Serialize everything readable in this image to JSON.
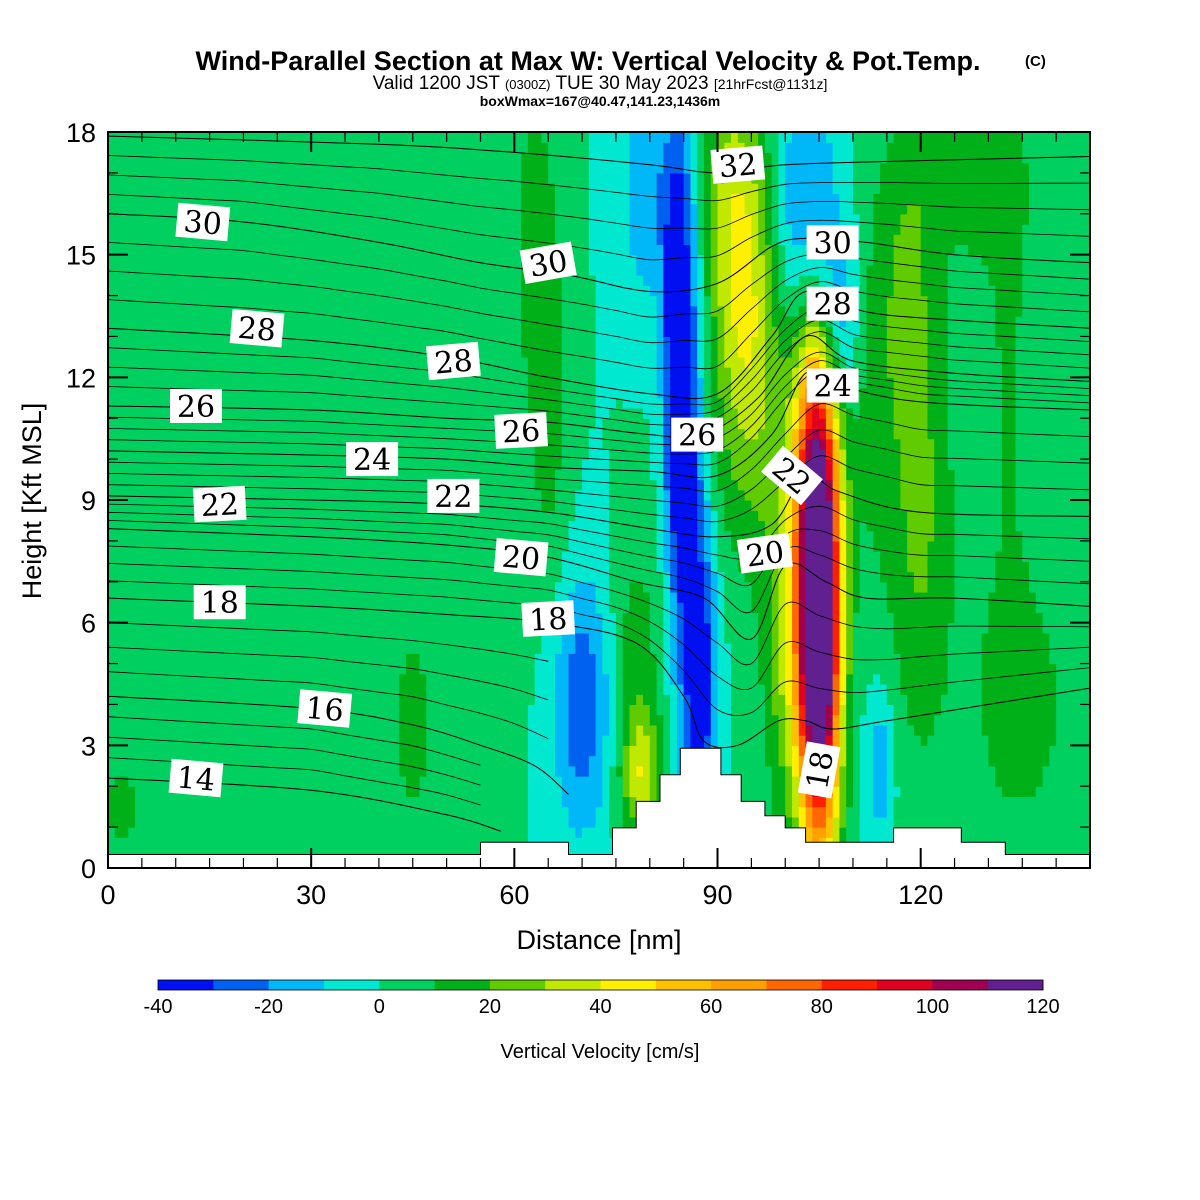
{
  "header": {
    "title_main": "Wind-Parallel Section at Max W: Vertical Velocity & Pot.Temp.",
    "title_mark": "(C)",
    "valid_a": "Valid 1200 JST",
    "valid_b": "(0300Z)",
    "valid_c": "TUE 30 May 2023",
    "valid_d": "[21hrFcst@1131z]",
    "box_info": "boxWmax=167@40.47,141.23,1436m"
  },
  "colorbar": {
    "label": "Vertical Velocity [cm/s]",
    "tick_labels": [
      "-40",
      "-20",
      "0",
      "20",
      "40",
      "60",
      "80",
      "100",
      "120"
    ],
    "levels": [
      -40,
      -30,
      -20,
      -10,
      0,
      10,
      20,
      30,
      40,
      50,
      60,
      70,
      80,
      90,
      100,
      110,
      120
    ],
    "colors": [
      "#0010f0",
      "#0060f0",
      "#00b8f8",
      "#00e8d0",
      "#00d060",
      "#00b018",
      "#60cc00",
      "#c0e800",
      "#fff000",
      "#ffc000",
      "#ffa000",
      "#ff6800",
      "#ff2000",
      "#e00020",
      "#a00050",
      "#602090"
    ]
  },
  "chart_data": {
    "type": "heatmap",
    "title": "Wind-Parallel Section at Max W: Vertical Velocity & Pot.Temp.",
    "xlabel": "Distance [nm]",
    "ylabel": "Height [Kft MSL]",
    "xlim": [
      0,
      145
    ],
    "ylim": [
      0,
      18
    ],
    "x_ticks": [
      0,
      30,
      60,
      90,
      120
    ],
    "y_ticks": [
      0,
      3,
      6,
      9,
      12,
      15,
      18
    ],
    "x_tick_labels": [
      "0",
      "30",
      "60",
      "90",
      "120"
    ],
    "y_tick_labels": [
      "0",
      "3",
      "6",
      "9",
      "12",
      "15",
      "18"
    ],
    "w_units": "cm/s",
    "w_features": [
      {
        "x": 84,
        "y": 12.5,
        "sx": 1.4,
        "sy": 3.6,
        "amp": -45
      },
      {
        "x": 86,
        "y": 8.5,
        "sx": 1.7,
        "sy": 5.5,
        "amp": -28
      },
      {
        "x": 88,
        "y": 4.5,
        "sx": 1.6,
        "sy": 2.5,
        "amp": -28
      },
      {
        "x": 70,
        "y": 4.0,
        "sx": 3.0,
        "sy": 2.2,
        "amp": -28
      },
      {
        "x": 103,
        "y": 15.5,
        "sx": 3.5,
        "sy": 2.6,
        "amp": -35
      },
      {
        "x": 108,
        "y": 13.5,
        "sx": 2.2,
        "sy": 1.5,
        "amp": -20
      },
      {
        "x": 114,
        "y": 2.5,
        "sx": 1.5,
        "sy": 1.3,
        "amp": -18
      },
      {
        "x": 80,
        "y": 16.5,
        "sx": 3.0,
        "sy": 2.0,
        "amp": -18
      },
      {
        "x": 105,
        "y": 5.8,
        "sx": 2.2,
        "sy": 3.8,
        "amp": 150
      },
      {
        "x": 104,
        "y": 10.5,
        "sx": 2.5,
        "sy": 3.5,
        "amp": 45
      },
      {
        "x": 95,
        "y": 13.0,
        "sx": 4.0,
        "sy": 3.5,
        "amp": 38
      },
      {
        "x": 92,
        "y": 16.5,
        "sx": 3.0,
        "sy": 2.5,
        "amp": 22
      },
      {
        "x": 100,
        "y": 5.0,
        "sx": 2.5,
        "sy": 3.0,
        "amp": 22
      },
      {
        "x": 63,
        "y": 15.5,
        "sx": 2.8,
        "sy": 3.0,
        "amp": 14
      },
      {
        "x": 65,
        "y": 10.5,
        "sx": 2.2,
        "sy": 3.0,
        "amp": 12
      },
      {
        "x": 78,
        "y": 4.5,
        "sx": 2.5,
        "sy": 2.5,
        "amp": 18
      },
      {
        "x": 79,
        "y": 2.2,
        "sx": 2.0,
        "sy": 1.0,
        "amp": 30
      },
      {
        "x": 45,
        "y": 3.5,
        "sx": 3.5,
        "sy": 2.8,
        "amp": 12
      },
      {
        "x": 2,
        "y": 1.5,
        "sx": 3.0,
        "sy": 1.5,
        "amp": 12
      },
      {
        "x": 120,
        "y": 9.0,
        "sx": 3.5,
        "sy": 4.5,
        "amp": 22
      },
      {
        "x": 113,
        "y": 12.0,
        "sx": 3.0,
        "sy": 3.5,
        "amp": 13
      },
      {
        "x": 135,
        "y": 4.0,
        "sx": 6.0,
        "sy": 2.5,
        "amp": 14
      },
      {
        "x": 133,
        "y": 12.5,
        "sx": 3.0,
        "sy": 5.0,
        "amp": 11
      },
      {
        "x": 128,
        "y": 17.0,
        "sx": 5.0,
        "sy": 1.5,
        "amp": 16
      },
      {
        "x": 118,
        "y": 15.5,
        "sx": 3.0,
        "sy": 2.5,
        "amp": 12
      },
      {
        "x": 58,
        "y": 5.0,
        "sx": 2.0,
        "sy": 2.5,
        "amp": 8
      }
    ],
    "theta_contours": [
      {
        "level": 14,
        "points": [
          [
            0,
            2.2
          ],
          [
            30,
            1.9
          ],
          [
            50,
            1.3
          ],
          [
            58,
            0.9
          ]
        ]
      },
      {
        "level": 16,
        "points": [
          [
            0,
            4.2
          ],
          [
            30,
            3.9
          ],
          [
            45,
            3.5
          ],
          [
            55,
            3.0
          ],
          [
            63,
            2.5
          ],
          [
            68,
            1.8
          ]
        ]
      },
      {
        "level": 18,
        "points": [
          [
            0,
            6.6
          ],
          [
            30,
            6.4
          ],
          [
            50,
            6.2
          ],
          [
            65,
            6.0
          ],
          [
            78,
            5.5
          ],
          [
            85,
            4.2
          ],
          [
            88,
            3.1
          ],
          [
            93,
            3.0
          ],
          [
            99,
            3.6
          ],
          [
            103,
            3.6
          ],
          [
            107,
            3.4
          ],
          [
            115,
            3.6
          ],
          [
            130,
            4.0
          ],
          [
            145,
            4.4
          ]
        ]
      },
      {
        "level": 20,
        "points": [
          [
            0,
            8.3
          ],
          [
            30,
            8.1
          ],
          [
            50,
            7.9
          ],
          [
            65,
            7.6
          ],
          [
            78,
            7.0
          ],
          [
            88,
            6.6
          ],
          [
            95,
            5.6
          ],
          [
            100,
            7.4
          ],
          [
            106,
            7.0
          ],
          [
            112,
            6.6
          ],
          [
            125,
            6.6
          ],
          [
            145,
            6.4
          ]
        ]
      },
      {
        "level": 22,
        "points": [
          [
            0,
            9.1
          ],
          [
            30,
            9.0
          ],
          [
            50,
            8.9
          ],
          [
            65,
            8.7
          ],
          [
            80,
            8.3
          ],
          [
            90,
            8.1
          ],
          [
            98,
            8.4
          ],
          [
            103,
            9.6
          ],
          [
            108,
            9.2
          ],
          [
            120,
            8.7
          ],
          [
            145,
            8.6
          ]
        ]
      },
      {
        "level": 24,
        "points": [
          [
            0,
            10.2
          ],
          [
            30,
            10.1
          ],
          [
            50,
            10.0
          ],
          [
            65,
            9.8
          ],
          [
            80,
            9.7
          ],
          [
            90,
            9.6
          ],
          [
            98,
            10.6
          ],
          [
            103,
            12.1
          ],
          [
            108,
            11.8
          ],
          [
            120,
            11.4
          ],
          [
            145,
            11.2
          ]
        ]
      },
      {
        "level": 26,
        "points": [
          [
            0,
            11.3
          ],
          [
            30,
            11.2
          ],
          [
            50,
            11.0
          ],
          [
            65,
            10.9
          ],
          [
            80,
            10.6
          ],
          [
            88,
            10.6
          ],
          [
            96,
            11.5
          ],
          [
            103,
            13.0
          ],
          [
            110,
            12.4
          ],
          [
            125,
            12.1
          ],
          [
            145,
            11.9
          ]
        ]
      },
      {
        "level": 28,
        "points": [
          [
            0,
            13.2
          ],
          [
            30,
            12.9
          ],
          [
            50,
            12.5
          ],
          [
            65,
            12.0
          ],
          [
            80,
            11.6
          ],
          [
            90,
            11.6
          ],
          [
            98,
            13.0
          ],
          [
            103,
            14.1
          ],
          [
            112,
            13.6
          ],
          [
            125,
            13.4
          ],
          [
            145,
            13.2
          ]
        ]
      },
      {
        "level": 30,
        "points": [
          [
            0,
            16.0
          ],
          [
            20,
            15.8
          ],
          [
            40,
            15.3
          ],
          [
            55,
            14.8
          ],
          [
            68,
            14.5
          ],
          [
            80,
            14.1
          ],
          [
            90,
            14.3
          ],
          [
            98,
            15.2
          ],
          [
            103,
            15.4
          ],
          [
            112,
            15.3
          ],
          [
            125,
            15.0
          ],
          [
            145,
            14.8
          ]
        ]
      },
      {
        "level": 32,
        "points": [
          [
            0,
            17.9
          ],
          [
            40,
            17.7
          ],
          [
            60,
            17.5
          ],
          [
            80,
            17.2
          ],
          [
            90,
            17.0
          ],
          [
            100,
            17.2
          ],
          [
            120,
            17.3
          ],
          [
            145,
            17.4
          ]
        ]
      }
    ],
    "contour_labels": [
      {
        "text": "30",
        "x": 14,
        "y": 15.8,
        "rot": 5
      },
      {
        "text": "28",
        "x": 22,
        "y": 13.2,
        "rot": 5
      },
      {
        "text": "26",
        "x": 13,
        "y": 11.3,
        "rot": 0
      },
      {
        "text": "24",
        "x": 39,
        "y": 10.0,
        "rot": 0
      },
      {
        "text": "22",
        "x": 16.5,
        "y": 8.9,
        "rot": -3
      },
      {
        "text": "18",
        "x": 16.5,
        "y": 6.5,
        "rot": 0
      },
      {
        "text": "16",
        "x": 32,
        "y": 3.9,
        "rot": 5
      },
      {
        "text": "14",
        "x": 13,
        "y": 2.2,
        "rot": 5
      },
      {
        "text": "30",
        "x": 65,
        "y": 14.8,
        "rot": -10
      },
      {
        "text": "28",
        "x": 51,
        "y": 12.4,
        "rot": -5
      },
      {
        "text": "26",
        "x": 61,
        "y": 10.7,
        "rot": -3
      },
      {
        "text": "22",
        "x": 51,
        "y": 9.1,
        "rot": 0
      },
      {
        "text": "20",
        "x": 61,
        "y": 7.6,
        "rot": 5
      },
      {
        "text": "18",
        "x": 65,
        "y": 6.1,
        "rot": -3
      },
      {
        "text": "26",
        "x": 87,
        "y": 10.6,
        "rot": 0
      },
      {
        "text": "32",
        "x": 93,
        "y": 17.2,
        "rot": -5
      },
      {
        "text": "30",
        "x": 107,
        "y": 15.3,
        "rot": 0
      },
      {
        "text": "28",
        "x": 107,
        "y": 13.8,
        "rot": 0
      },
      {
        "text": "24",
        "x": 107,
        "y": 11.8,
        "rot": 0
      },
      {
        "text": "22",
        "x": 101,
        "y": 9.6,
        "rot": 40
      },
      {
        "text": "20",
        "x": 97,
        "y": 7.7,
        "rot": -8
      },
      {
        "text": "18",
        "x": 105,
        "y": 2.4,
        "rot": -80
      }
    ],
    "terrain": [
      [
        0,
        0.33
      ],
      [
        55,
        0.33
      ],
      [
        55,
        0.63
      ],
      [
        68,
        0.63
      ],
      [
        68,
        0.33
      ],
      [
        74.5,
        0.33
      ],
      [
        74.5,
        0.98
      ],
      [
        78,
        0.98
      ],
      [
        78,
        1.63
      ],
      [
        81.5,
        1.63
      ],
      [
        81.5,
        2.28
      ],
      [
        84.5,
        2.28
      ],
      [
        84.5,
        2.93
      ],
      [
        90.5,
        2.93
      ],
      [
        90.5,
        2.28
      ],
      [
        93.5,
        2.28
      ],
      [
        93.5,
        1.63
      ],
      [
        97,
        1.63
      ],
      [
        97,
        1.28
      ],
      [
        100,
        1.28
      ],
      [
        100,
        0.98
      ],
      [
        103,
        0.98
      ],
      [
        103,
        0.63
      ],
      [
        116,
        0.63
      ],
      [
        116,
        0.98
      ],
      [
        126,
        0.98
      ],
      [
        126,
        0.63
      ],
      [
        132.5,
        0.63
      ],
      [
        132.5,
        0.33
      ],
      [
        145,
        0.33
      ]
    ]
  }
}
